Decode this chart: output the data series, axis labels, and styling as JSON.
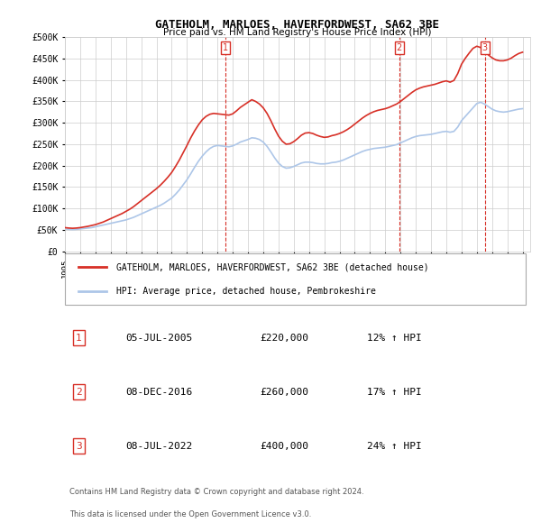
{
  "title": "GATEHOLM, MARLOES, HAVERFORDWEST, SA62 3BE",
  "subtitle": "Price paid vs. HM Land Registry's House Price Index (HPI)",
  "ylabel_ticks": [
    "£0",
    "£50K",
    "£100K",
    "£150K",
    "£200K",
    "£250K",
    "£300K",
    "£350K",
    "£400K",
    "£450K",
    "£500K"
  ],
  "ytick_values": [
    0,
    50000,
    100000,
    150000,
    200000,
    250000,
    300000,
    350000,
    400000,
    450000,
    500000
  ],
  "ylim": [
    0,
    500000
  ],
  "xlim_start": 1995.0,
  "xlim_end": 2025.5,
  "xtick_years": [
    1995,
    1996,
    1997,
    1998,
    1999,
    2000,
    2001,
    2002,
    2003,
    2004,
    2005,
    2006,
    2007,
    2008,
    2009,
    2010,
    2011,
    2012,
    2013,
    2014,
    2015,
    2016,
    2017,
    2018,
    2019,
    2020,
    2021,
    2022,
    2023,
    2024,
    2025
  ],
  "hpi_color": "#adc6e8",
  "price_color": "#d73027",
  "vline_color": "#d73027",
  "vline_style": "--",
  "annotation_box_color": "#d73027",
  "grid_color": "#cccccc",
  "background_color": "#ffffff",
  "legend_line1": "GATEHOLM, MARLOES, HAVERFORDWEST, SA62 3BE (detached house)",
  "legend_line2": "HPI: Average price, detached house, Pembrokeshire",
  "transactions": [
    {
      "id": 1,
      "date": "05-JUL-2005",
      "year": 2005.5,
      "price": 220000,
      "hpi_pct": "12%",
      "direction": "↑"
    },
    {
      "id": 2,
      "date": "08-DEC-2016",
      "year": 2016.92,
      "price": 260000,
      "hpi_pct": "17%",
      "direction": "↑"
    },
    {
      "id": 3,
      "date": "08-JUL-2022",
      "year": 2022.52,
      "price": 400000,
      "hpi_pct": "24%",
      "direction": "↑"
    }
  ],
  "footnote1": "Contains HM Land Registry data © Crown copyright and database right 2024.",
  "footnote2": "This data is licensed under the Open Government Licence v3.0.",
  "hpi_data": {
    "years": [
      1995.0,
      1995.25,
      1995.5,
      1995.75,
      1996.0,
      1996.25,
      1996.5,
      1996.75,
      1997.0,
      1997.25,
      1997.5,
      1997.75,
      1998.0,
      1998.25,
      1998.5,
      1998.75,
      1999.0,
      1999.25,
      1999.5,
      1999.75,
      2000.0,
      2000.25,
      2000.5,
      2000.75,
      2001.0,
      2001.25,
      2001.5,
      2001.75,
      2002.0,
      2002.25,
      2002.5,
      2002.75,
      2003.0,
      2003.25,
      2003.5,
      2003.75,
      2004.0,
      2004.25,
      2004.5,
      2004.75,
      2005.0,
      2005.25,
      2005.5,
      2005.75,
      2006.0,
      2006.25,
      2006.5,
      2006.75,
      2007.0,
      2007.25,
      2007.5,
      2007.75,
      2008.0,
      2008.25,
      2008.5,
      2008.75,
      2009.0,
      2009.25,
      2009.5,
      2009.75,
      2010.0,
      2010.25,
      2010.5,
      2010.75,
      2011.0,
      2011.25,
      2011.5,
      2011.75,
      2012.0,
      2012.25,
      2012.5,
      2012.75,
      2013.0,
      2013.25,
      2013.5,
      2013.75,
      2014.0,
      2014.25,
      2014.5,
      2014.75,
      2015.0,
      2015.25,
      2015.5,
      2015.75,
      2016.0,
      2016.25,
      2016.5,
      2016.75,
      2017.0,
      2017.25,
      2017.5,
      2017.75,
      2018.0,
      2018.25,
      2018.5,
      2018.75,
      2019.0,
      2019.25,
      2019.5,
      2019.75,
      2020.0,
      2020.25,
      2020.5,
      2020.75,
      2021.0,
      2021.25,
      2021.5,
      2021.75,
      2022.0,
      2022.25,
      2022.5,
      2022.75,
      2023.0,
      2023.25,
      2023.5,
      2023.75,
      2024.0,
      2024.25,
      2024.5,
      2024.75,
      2025.0
    ],
    "values": [
      52000,
      51000,
      50500,
      51000,
      52000,
      53000,
      54000,
      55000,
      57000,
      59000,
      61000,
      63000,
      65000,
      67000,
      69000,
      71000,
      73000,
      76000,
      79000,
      83000,
      87000,
      91000,
      95000,
      99000,
      103000,
      107000,
      112000,
      118000,
      124000,
      133000,
      143000,
      155000,
      167000,
      181000,
      196000,
      210000,
      222000,
      232000,
      240000,
      245000,
      247000,
      246000,
      245000,
      244000,
      246000,
      250000,
      255000,
      258000,
      261000,
      265000,
      264000,
      261000,
      255000,
      245000,
      232000,
      218000,
      206000,
      198000,
      194000,
      195000,
      198000,
      202000,
      206000,
      208000,
      208000,
      207000,
      205000,
      204000,
      204000,
      205000,
      207000,
      208000,
      210000,
      213000,
      217000,
      221000,
      225000,
      229000,
      233000,
      236000,
      238000,
      240000,
      241000,
      242000,
      243000,
      245000,
      247000,
      249000,
      253000,
      257000,
      261000,
      265000,
      268000,
      270000,
      271000,
      272000,
      273000,
      275000,
      277000,
      279000,
      280000,
      278000,
      280000,
      290000,
      305000,
      315000,
      325000,
      335000,
      345000,
      348000,
      344000,
      338000,
      332000,
      328000,
      326000,
      325000,
      326000,
      328000,
      330000,
      332000,
      333000
    ]
  },
  "price_data": {
    "years": [
      1995.0,
      1995.25,
      1995.5,
      1995.75,
      1996.0,
      1996.25,
      1996.5,
      1996.75,
      1997.0,
      1997.25,
      1997.5,
      1997.75,
      1998.0,
      1998.25,
      1998.5,
      1998.75,
      1999.0,
      1999.25,
      1999.5,
      1999.75,
      2000.0,
      2000.25,
      2000.5,
      2000.75,
      2001.0,
      2001.25,
      2001.5,
      2001.75,
      2002.0,
      2002.25,
      2002.5,
      2002.75,
      2003.0,
      2003.25,
      2003.5,
      2003.75,
      2004.0,
      2004.25,
      2004.5,
      2004.75,
      2005.0,
      2005.25,
      2005.5,
      2005.75,
      2006.0,
      2006.25,
      2006.5,
      2006.75,
      2007.0,
      2007.25,
      2007.5,
      2007.75,
      2008.0,
      2008.25,
      2008.5,
      2008.75,
      2009.0,
      2009.25,
      2009.5,
      2009.75,
      2010.0,
      2010.25,
      2010.5,
      2010.75,
      2011.0,
      2011.25,
      2011.5,
      2011.75,
      2012.0,
      2012.25,
      2012.5,
      2012.75,
      2013.0,
      2013.25,
      2013.5,
      2013.75,
      2014.0,
      2014.25,
      2014.5,
      2014.75,
      2015.0,
      2015.25,
      2015.5,
      2015.75,
      2016.0,
      2016.25,
      2016.5,
      2016.75,
      2017.0,
      2017.25,
      2017.5,
      2017.75,
      2018.0,
      2018.25,
      2018.5,
      2018.75,
      2019.0,
      2019.25,
      2019.5,
      2019.75,
      2020.0,
      2020.25,
      2020.5,
      2020.75,
      2021.0,
      2021.25,
      2021.5,
      2021.75,
      2022.0,
      2022.25,
      2022.5,
      2022.75,
      2023.0,
      2023.25,
      2023.5,
      2023.75,
      2024.0,
      2024.25,
      2024.5,
      2024.75,
      2025.0
    ],
    "values": [
      55000,
      54000,
      53500,
      54000,
      55000,
      56500,
      58000,
      60000,
      62000,
      65000,
      68000,
      72000,
      76000,
      80000,
      84000,
      88000,
      93000,
      98000,
      104000,
      111000,
      118000,
      125000,
      132000,
      139000,
      146000,
      154000,
      163000,
      173000,
      184000,
      198000,
      213000,
      230000,
      247000,
      265000,
      281000,
      295000,
      307000,
      315000,
      320000,
      322000,
      321000,
      320000,
      319000,
      318000,
      321000,
      328000,
      336000,
      342000,
      348000,
      354000,
      350000,
      344000,
      335000,
      322000,
      305000,
      286000,
      269000,
      257000,
      250000,
      251000,
      256000,
      263000,
      271000,
      276000,
      277000,
      275000,
      271000,
      268000,
      266000,
      267000,
      270000,
      272000,
      275000,
      279000,
      284000,
      290000,
      297000,
      304000,
      311000,
      317000,
      322000,
      326000,
      329000,
      331000,
      333000,
      336000,
      340000,
      344000,
      350000,
      357000,
      364000,
      371000,
      377000,
      381000,
      384000,
      386000,
      388000,
      390000,
      393000,
      396000,
      398000,
      395000,
      399000,
      415000,
      437000,
      451000,
      463000,
      474000,
      479000,
      476000,
      468000,
      459000,
      452000,
      447000,
      445000,
      445000,
      447000,
      451000,
      457000,
      462000,
      465000
    ]
  }
}
